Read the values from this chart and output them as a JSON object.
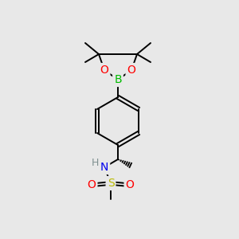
{
  "bg_color": "#e8e8e8",
  "atom_colors": {
    "C": "#000000",
    "H": "#7f9090",
    "N": "#0000ee",
    "O": "#ff0000",
    "S": "#bbbb00",
    "B": "#00bb00"
  },
  "figsize": [
    3.0,
    3.0
  ],
  "dpi": 100,
  "bond_lw": 1.4,
  "font_size": 9.5
}
